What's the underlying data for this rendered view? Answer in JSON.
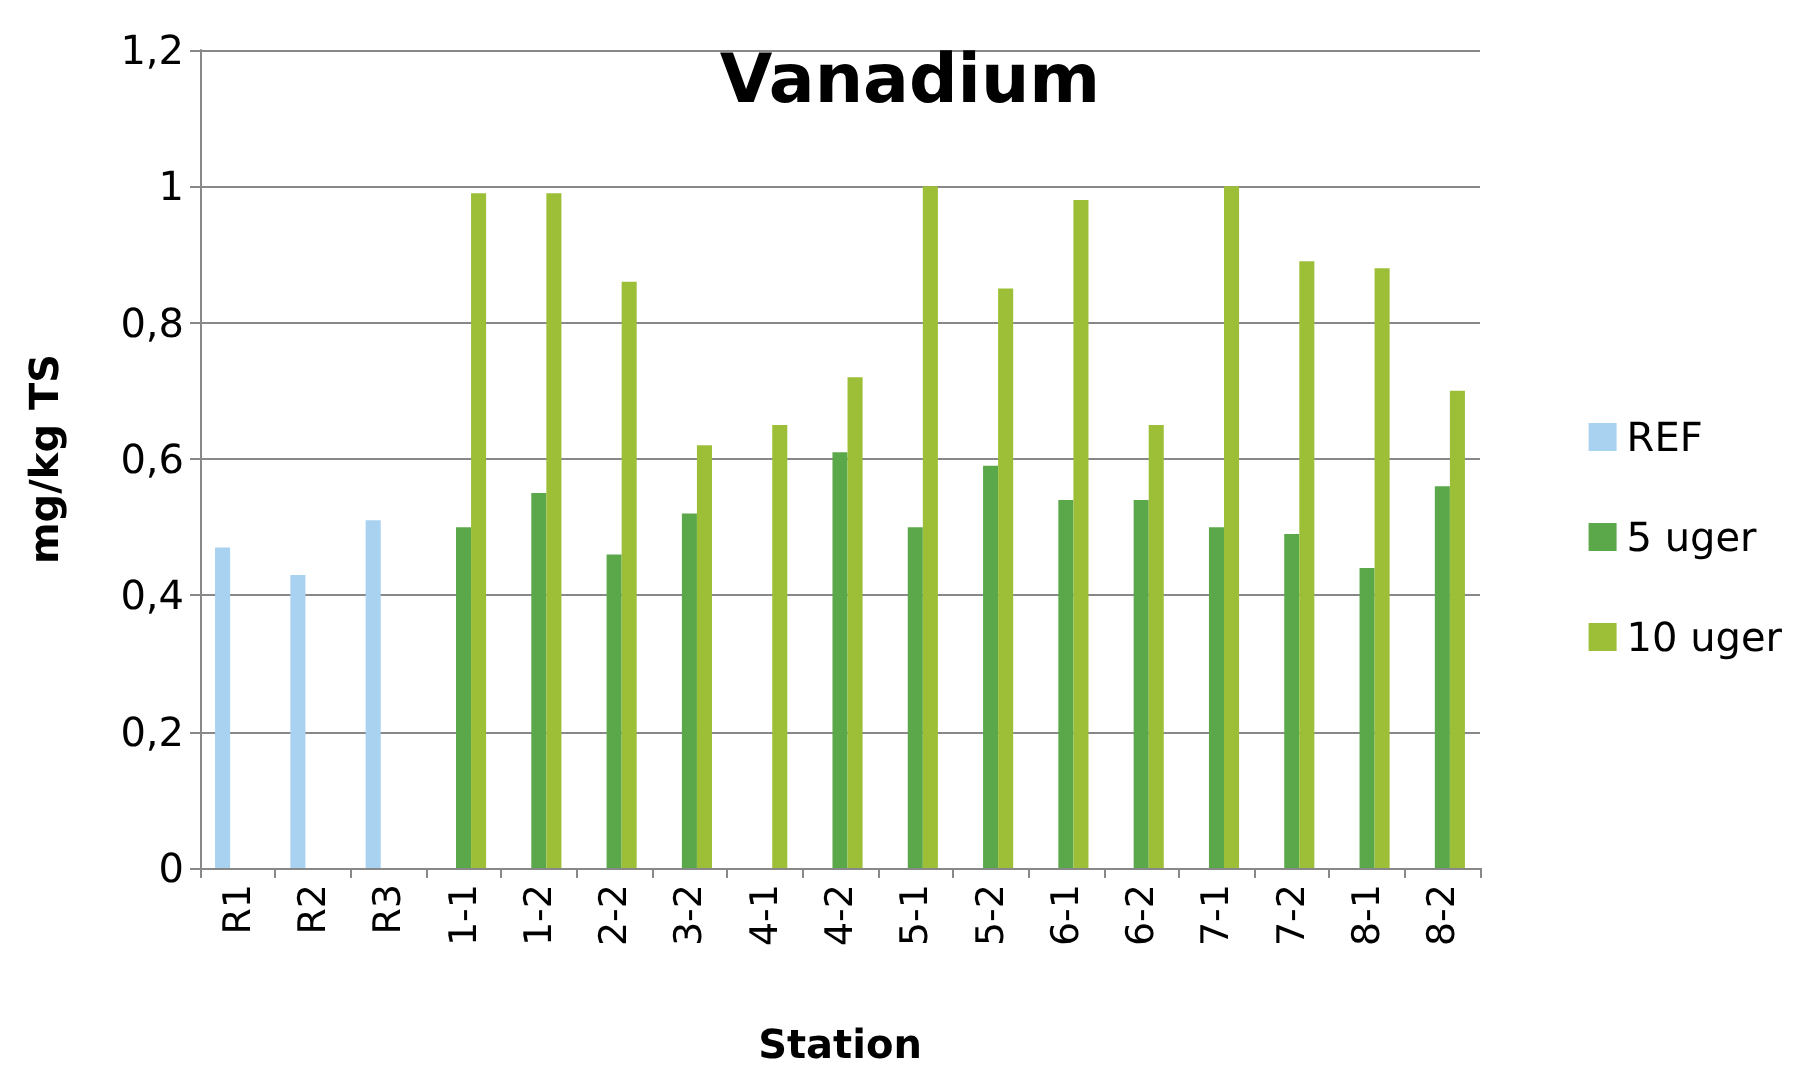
{
  "chart_data": {
    "type": "bar",
    "title": "Vanadium",
    "xlabel": "Station",
    "ylabel": "mg/kg TS",
    "categories": [
      "R1",
      "R2",
      "R3",
      "1-1",
      "1-2",
      "2-2",
      "3-2",
      "4-1",
      "4-2",
      "5-1",
      "5-2",
      "6-1",
      "6-2",
      "7-1",
      "7-2",
      "8-1",
      "8-2"
    ],
    "series": [
      {
        "name": "REF",
        "color": "#a9d1f0",
        "values": [
          0.47,
          0.43,
          0.51,
          null,
          null,
          null,
          null,
          null,
          null,
          null,
          null,
          null,
          null,
          null,
          null,
          null,
          null
        ]
      },
      {
        "name": "5 uger",
        "color": "#5ba84a",
        "values": [
          null,
          null,
          null,
          0.5,
          0.55,
          0.46,
          0.52,
          null,
          0.61,
          0.5,
          0.59,
          0.54,
          0.54,
          0.5,
          0.49,
          0.44,
          0.56
        ]
      },
      {
        "name": "10 uger",
        "color": "#9dbf38",
        "values": [
          null,
          null,
          null,
          0.99,
          0.99,
          0.86,
          0.62,
          0.65,
          0.72,
          1.0,
          0.85,
          0.98,
          0.65,
          1.0,
          0.89,
          0.88,
          0.7
        ]
      }
    ],
    "ylim": [
      0,
      1.2
    ],
    "yticks": [
      0,
      {
        "value": 0.2,
        "label": "0,2"
      },
      {
        "value": 0.4,
        "label": "0,4"
      },
      {
        "value": 0.6,
        "label": "0,6"
      },
      {
        "value": 0.8,
        "label": "0,8"
      },
      1,
      {
        "value": 1.2,
        "label": "1,2"
      }
    ],
    "grid": "y",
    "legend": "right"
  }
}
